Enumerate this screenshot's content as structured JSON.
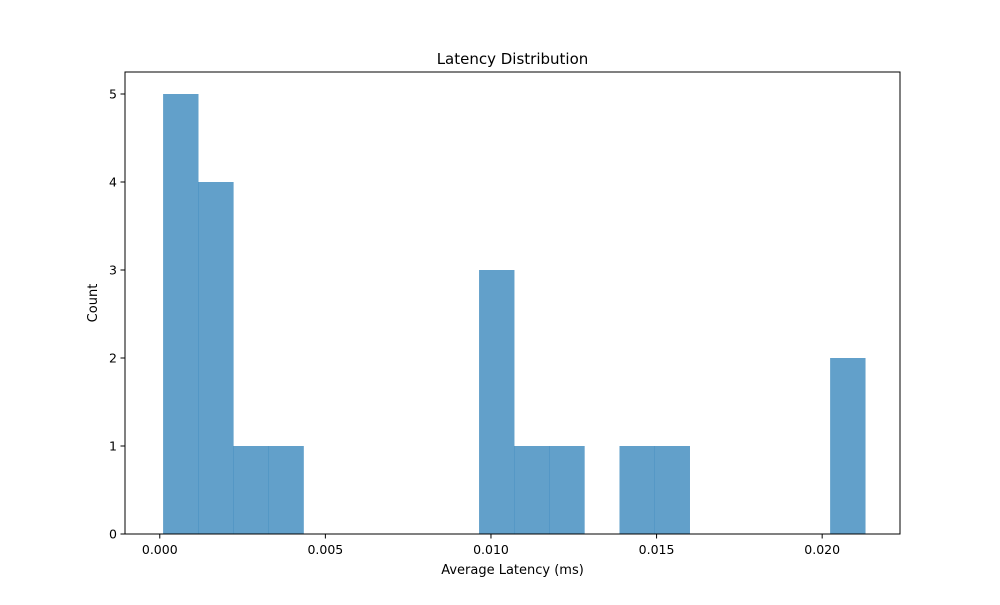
{
  "chart_data": {
    "type": "bar",
    "title": "Latency Distribution",
    "xlabel": "Average Latency (ms)",
    "ylabel": "Count",
    "xlim": [
      -0.00105,
      0.02235
    ],
    "ylim": [
      0,
      5.25
    ],
    "xticks": [
      0.0,
      0.005,
      0.01,
      0.015,
      0.02
    ],
    "xtick_labels": [
      "0.000",
      "0.005",
      "0.010",
      "0.015",
      "0.020"
    ],
    "yticks": [
      0,
      1,
      2,
      3,
      4,
      5
    ],
    "ytick_labels": [
      "0",
      "1",
      "2",
      "3",
      "4",
      "5"
    ],
    "bin_edges": [
      0.0001,
      0.00116,
      0.00222,
      0.00328,
      0.00434,
      0.0054,
      0.00646,
      0.00752,
      0.00858,
      0.00964,
      0.0107,
      0.01176,
      0.01282,
      0.01388,
      0.01494,
      0.016,
      0.01706,
      0.01812,
      0.01918,
      0.02024,
      0.0213
    ],
    "counts": [
      5,
      4,
      1,
      1,
      0,
      0,
      0,
      0,
      0,
      3,
      1,
      1,
      0,
      1,
      1,
      0,
      0,
      0,
      0,
      2
    ],
    "bar_color": "#1f77b4",
    "bar_opacity": 0.7,
    "grid": false,
    "legend": false
  }
}
